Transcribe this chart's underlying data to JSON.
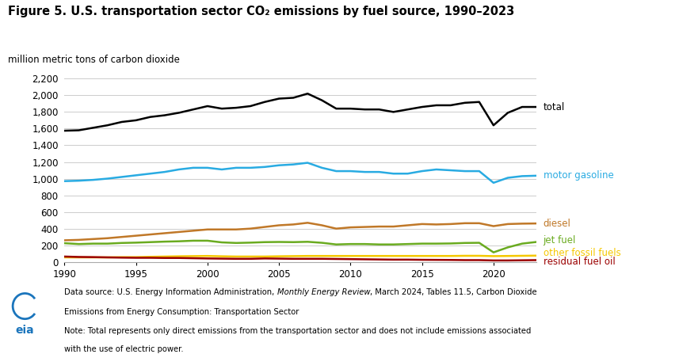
{
  "title": "Figure 5. U.S. transportation sector CO₂ emissions by fuel source, 1990–2023",
  "ylabel": "million metric tons of carbon dioxide",
  "years": [
    1990,
    1991,
    1992,
    1993,
    1994,
    1995,
    1996,
    1997,
    1998,
    1999,
    2000,
    2001,
    2002,
    2003,
    2004,
    2005,
    2006,
    2007,
    2008,
    2009,
    2010,
    2011,
    2012,
    2013,
    2014,
    2015,
    2016,
    2017,
    2018,
    2019,
    2020,
    2021,
    2022,
    2023
  ],
  "total": [
    1575,
    1580,
    1610,
    1640,
    1680,
    1700,
    1740,
    1760,
    1790,
    1830,
    1870,
    1840,
    1850,
    1870,
    1920,
    1960,
    1970,
    2020,
    1940,
    1840,
    1840,
    1830,
    1830,
    1800,
    1830,
    1860,
    1880,
    1880,
    1910,
    1920,
    1640,
    1790,
    1860,
    1860
  ],
  "motor_gasoline": [
    970,
    975,
    985,
    1000,
    1020,
    1040,
    1060,
    1080,
    1110,
    1130,
    1130,
    1110,
    1130,
    1130,
    1140,
    1160,
    1170,
    1190,
    1130,
    1090,
    1090,
    1080,
    1080,
    1060,
    1060,
    1090,
    1110,
    1100,
    1090,
    1090,
    950,
    1010,
    1030,
    1035
  ],
  "diesel": [
    260,
    265,
    275,
    285,
    300,
    315,
    330,
    345,
    360,
    375,
    390,
    390,
    390,
    400,
    420,
    440,
    450,
    470,
    440,
    400,
    415,
    420,
    425,
    425,
    440,
    455,
    450,
    455,
    465,
    465,
    430,
    455,
    460,
    462
  ],
  "jet_fuel": [
    225,
    215,
    220,
    220,
    228,
    232,
    238,
    244,
    248,
    255,
    255,
    235,
    228,
    232,
    238,
    240,
    238,
    242,
    230,
    210,
    215,
    215,
    210,
    210,
    215,
    220,
    220,
    222,
    228,
    230,
    115,
    175,
    220,
    240
  ],
  "other_fossil": [
    55,
    55,
    55,
    55,
    58,
    58,
    62,
    65,
    68,
    70,
    72,
    68,
    65,
    65,
    65,
    68,
    70,
    72,
    72,
    72,
    72,
    72,
    72,
    72,
    72,
    72,
    72,
    72,
    74,
    74,
    70,
    72,
    74,
    76
  ],
  "residual_fuel": [
    65,
    60,
    58,
    55,
    52,
    50,
    50,
    48,
    48,
    45,
    42,
    40,
    38,
    38,
    42,
    40,
    38,
    38,
    38,
    36,
    34,
    32,
    30,
    28,
    28,
    26,
    25,
    24,
    22,
    22,
    18,
    18,
    20,
    22
  ],
  "colors": {
    "total": "#000000",
    "motor_gasoline": "#29ABE2",
    "diesel": "#C07828",
    "jet_fuel": "#6AAB20",
    "other_fossil": "#F5C800",
    "residual_fuel": "#9B0000"
  },
  "ylim": [
    0,
    2400
  ],
  "yticks": [
    0,
    200,
    400,
    600,
    800,
    1000,
    1200,
    1400,
    1600,
    1800,
    2000,
    2200
  ],
  "xlim": [
    1990,
    2023
  ],
  "xticks": [
    1990,
    1995,
    2000,
    2005,
    2010,
    2015,
    2020
  ],
  "label_total": "total",
  "label_motor": "motor gasoline",
  "label_diesel": "diesel",
  "label_jet": "jet fuel",
  "label_other": "other fossil fuels",
  "label_residual": "residual fuel oil",
  "footnote_pre": "Data source: U.S. Energy Information Administration, ",
  "footnote_italic": "Monthly Energy Review",
  "footnote_post": ", March 2024, Tables 11.5, Carbon Dioxide",
  "footnote_line2": "Emissions from Energy Consumption: Transportation Sector",
  "footnote_note": "Note: Total represents only direct emissions from the transportation sector and does not include emissions associated",
  "footnote_note2": "with the use of electric power.",
  "background_color": "#FFFFFF",
  "grid_color": "#CCCCCC"
}
